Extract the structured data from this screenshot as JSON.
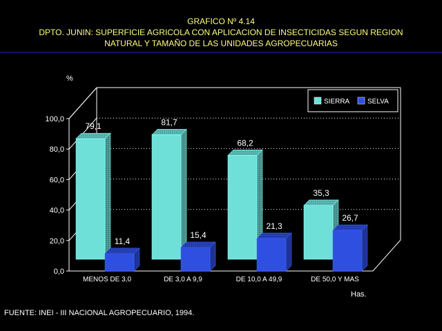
{
  "header": {
    "title": "GRAFICO Nº 4.14",
    "subtitle_line1": "DPTO. JUNIN: SUPERFICIE AGRICOLA CON APLICACION DE INSECTICIDAS SEGUN REGION",
    "subtitle_line2": "NATURAL Y TAMAÑO DE LAS UNIDADES AGROPECUARIAS"
  },
  "footer": {
    "source": "FUENTE: INEI - III NACIONAL AGROPECUARIO, 1994."
  },
  "colors": {
    "background": "#000000",
    "text": "#ffffff",
    "title": "#ffff80",
    "rule": "#2020c0",
    "sierra": "#6fe0d8",
    "selva": "#2f4fe0"
  },
  "chart_data": {
    "type": "bar",
    "title": "",
    "ylabel": "%",
    "xlabel": "Has.",
    "ylim": [
      0,
      100
    ],
    "yticks": [
      "0,0",
      "20,0",
      "40,0",
      "60,0",
      "80,0",
      "100,0"
    ],
    "categories": [
      "MENOS DE 3,0",
      "DE 3,0  A 9,9",
      "DE 10,0 A 49,9",
      "DE 50,0 Y MAS"
    ],
    "series": [
      {
        "name": "SIERRA",
        "values": [
          79.1,
          81.7,
          68.2,
          35.3
        ],
        "labels": [
          "79,1",
          "81,7",
          "68,2",
          "35,3"
        ]
      },
      {
        "name": "SELVA",
        "values": [
          11.4,
          15.4,
          21.3,
          26.7
        ],
        "labels": [
          "11,4",
          "15,4",
          "21,3",
          "26,7"
        ]
      }
    ],
    "grid": true,
    "legend": "top-right"
  }
}
